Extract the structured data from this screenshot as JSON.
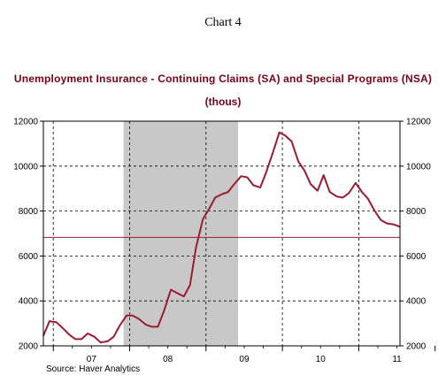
{
  "header": {
    "chart_number": "Chart 4"
  },
  "chart_data": {
    "type": "line",
    "title": "Unemployment Insurance - Continuing Claims (SA) and Special Programs (NSA)",
    "subtitle": "(thous)",
    "source": "Source: Haver Analytics",
    "xlabel": "",
    "ylabel": "",
    "x_tick_labels": [
      "07",
      "08",
      "09",
      "10",
      "11"
    ],
    "y_ticks": [
      2000,
      4000,
      6000,
      8000,
      10000,
      12000
    ],
    "y_tick_labels": [
      "2000",
      "4000",
      "6000",
      "8000",
      "10000",
      "12000"
    ],
    "ylim": [
      2000,
      12000
    ],
    "xlim": [
      2006.87,
      2011.54
    ],
    "grid": true,
    "recession_shading": {
      "start": 2007.92,
      "end": 2009.42,
      "color": "#c8c8c8"
    },
    "reference_line": {
      "value": 6830,
      "color": "#9b1b30"
    },
    "series": [
      {
        "color": "#9b1b30",
        "x": [
          2006.87,
          2006.95,
          2007.04,
          2007.12,
          2007.21,
          2007.29,
          2007.37,
          2007.45,
          2007.54,
          2007.62,
          2007.71,
          2007.79,
          2007.87,
          2007.96,
          2008.04,
          2008.12,
          2008.21,
          2008.29,
          2008.37,
          2008.45,
          2008.54,
          2008.62,
          2008.71,
          2008.79,
          2008.87,
          2008.96,
          2009.04,
          2009.12,
          2009.21,
          2009.29,
          2009.37,
          2009.46,
          2009.54,
          2009.62,
          2009.71,
          2009.79,
          2009.87,
          2009.96,
          2010.04,
          2010.12,
          2010.21,
          2010.29,
          2010.37,
          2010.46,
          2010.54,
          2010.62,
          2010.71,
          2010.79,
          2010.87,
          2010.96,
          2011.04,
          2011.12,
          2011.21,
          2011.29,
          2011.37,
          2011.46,
          2011.54
        ],
        "values": [
          2450,
          3100,
          3050,
          2800,
          2500,
          2300,
          2300,
          2550,
          2400,
          2150,
          2200,
          2400,
          2900,
          3350,
          3350,
          3200,
          2950,
          2850,
          2850,
          3550,
          4500,
          4350,
          4200,
          4700,
          6400,
          7650,
          8100,
          8600,
          8750,
          8850,
          9200,
          9550,
          9500,
          9150,
          9050,
          9750,
          10550,
          11500,
          11350,
          11100,
          10200,
          9800,
          9200,
          8900,
          9600,
          8850,
          8650,
          8600,
          8800,
          9250,
          8850,
          8550,
          8000,
          7600,
          7450,
          7400,
          7300
        ]
      }
    ]
  }
}
